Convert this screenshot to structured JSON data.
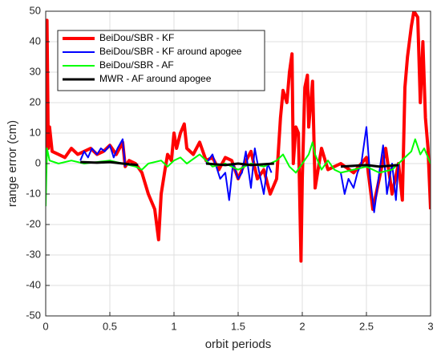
{
  "chart_data": {
    "type": "line",
    "xlabel": "orbit periods",
    "ylabel": "range error (cm)",
    "xlim": [
      0,
      3
    ],
    "xticks": [
      0,
      0.5,
      1,
      1.5,
      2,
      2.5,
      3
    ],
    "ylim": [
      -50,
      50
    ],
    "yticks": [
      -50,
      -40,
      -30,
      -20,
      -10,
      0,
      10,
      20,
      30,
      40,
      50
    ],
    "grid": true,
    "legend": "upper left",
    "series": [
      {
        "name": "BeiDou/SBR - KF",
        "color": "#ff0000",
        "width": 4,
        "x": [
          0,
          0.01,
          0.02,
          0.03,
          0.05,
          0.1,
          0.15,
          0.2,
          0.25,
          0.3,
          0.35,
          0.4,
          0.45,
          0.5,
          0.55,
          0.6,
          0.62,
          0.65,
          0.7,
          0.75,
          0.8,
          0.85,
          0.88,
          0.9,
          0.93,
          0.95,
          0.98,
          1.0,
          1.02,
          1.05,
          1.08,
          1.1,
          1.15,
          1.2,
          1.25,
          1.3,
          1.35,
          1.4,
          1.45,
          1.5,
          1.55,
          1.6,
          1.65,
          1.7,
          1.75,
          1.8,
          1.83,
          1.85,
          1.88,
          1.9,
          1.92,
          1.93,
          1.95,
          1.97,
          1.99,
          2.0,
          2.02,
          2.04,
          2.05,
          2.08,
          2.1,
          2.15,
          2.2,
          2.3,
          2.4,
          2.5,
          2.55,
          2.6,
          2.65,
          2.7,
          2.75,
          2.78,
          2.8,
          2.82,
          2.85,
          2.87,
          2.9,
          2.92,
          2.94,
          2.96,
          2.98,
          3.0
        ],
        "values": [
          -3,
          47,
          5,
          12,
          4,
          3,
          2,
          5,
          3,
          4,
          5,
          3,
          4,
          6,
          3,
          7,
          -1,
          1,
          0,
          -3,
          -10,
          -15,
          -25,
          -10,
          -2,
          3,
          1,
          10,
          5,
          10,
          13,
          5,
          3,
          7,
          1,
          2,
          -2,
          2,
          1,
          -5,
          0,
          4,
          -5,
          -2,
          -10,
          -5,
          15,
          24,
          20,
          30,
          36,
          0,
          12,
          10,
          -32,
          -5,
          25,
          29,
          12,
          27,
          -8,
          5,
          -2,
          0,
          -3,
          2,
          -15,
          -5,
          5,
          -10,
          0,
          -12,
          25,
          35,
          45,
          50,
          48,
          20,
          40,
          15,
          5,
          -15
        ]
      },
      {
        "name": "BeiDou/SBR - KF around apogee",
        "color": "#0000ff",
        "width": 2,
        "x": [
          0.27,
          0.3,
          0.33,
          0.36,
          0.4,
          0.43,
          0.46,
          0.5,
          0.53,
          0.56,
          0.6,
          0.62,
          0.9,
          1.25,
          1.3,
          1.33,
          1.36,
          1.4,
          1.43,
          1.46,
          1.5,
          1.53,
          1.56,
          1.6,
          1.63,
          1.66,
          1.7,
          1.73,
          1.76,
          2.0,
          2.3,
          2.33,
          2.36,
          2.4,
          2.43,
          2.46,
          2.5,
          2.53,
          2.56,
          2.6,
          2.63,
          2.66,
          2.7,
          2.73,
          2.75
        ],
        "values": [
          1,
          4,
          2,
          5,
          3,
          5,
          4,
          6,
          2,
          5,
          8,
          -1,
          null,
          0,
          3,
          -1,
          -5,
          -3,
          -12,
          0,
          -5,
          -3,
          4,
          -8,
          5,
          -2,
          -10,
          0,
          -3,
          null,
          -3,
          -10,
          -5,
          -8,
          -3,
          0,
          12,
          -5,
          -16,
          -3,
          6,
          -10,
          0,
          -12,
          0
        ]
      },
      {
        "name": "BeiDou/SBR - AF",
        "color": "#00ff00",
        "width": 2,
        "x": [
          0,
          0.01,
          0.03,
          0.1,
          0.2,
          0.3,
          0.5,
          0.6,
          0.7,
          0.75,
          0.8,
          0.9,
          0.95,
          1.0,
          1.05,
          1.1,
          1.2,
          1.3,
          1.4,
          1.5,
          1.6,
          1.7,
          1.8,
          1.85,
          1.9,
          1.95,
          2.0,
          2.05,
          2.08,
          2.1,
          2.15,
          2.2,
          2.25,
          2.3,
          2.4,
          2.5,
          2.6,
          2.7,
          2.8,
          2.85,
          2.88,
          2.92,
          2.95,
          3.0
        ],
        "values": [
          -14,
          5,
          1,
          0,
          1,
          0,
          1,
          0,
          -1,
          -2,
          0,
          1,
          -1,
          1,
          2,
          0,
          3,
          -1,
          0,
          -2,
          0,
          -1,
          1,
          3,
          -1,
          -3,
          0,
          3,
          7,
          3,
          -2,
          1,
          -2,
          -3,
          -2,
          -1,
          -3,
          -2,
          2,
          4,
          8,
          3,
          5,
          0
        ]
      },
      {
        "name": "MWR - AF around apogee",
        "color": "#000000",
        "width": 3,
        "x": [
          0.27,
          0.4,
          0.5,
          0.6,
          0.72,
          1.0,
          1.25,
          1.4,
          1.5,
          1.6,
          1.78,
          2.0,
          2.3,
          2.5,
          2.6,
          2.75
        ],
        "values": [
          0.5,
          0.3,
          0.5,
          0,
          -0.5,
          null,
          0,
          -0.5,
          0,
          -0.5,
          0,
          null,
          -1,
          -0.5,
          -1,
          -0.5
        ]
      }
    ]
  }
}
